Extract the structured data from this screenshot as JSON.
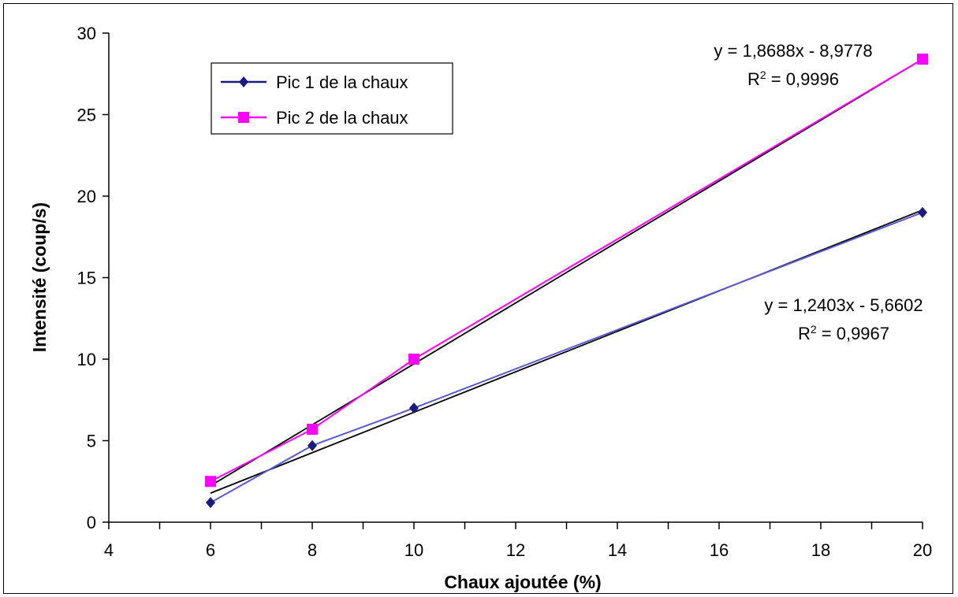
{
  "chart_data": {
    "type": "line",
    "xlabel": "Chaux ajoutée (%)",
    "ylabel": "Intensité (coup/s)",
    "xlim": [
      4,
      20
    ],
    "ylim": [
      0,
      30
    ],
    "x_ticks": [
      4,
      6,
      8,
      10,
      12,
      14,
      16,
      18,
      20
    ],
    "y_ticks": [
      0,
      5,
      10,
      15,
      20,
      25,
      30
    ],
    "grid": false,
    "legend_placement": "top-left",
    "series": [
      {
        "name": "Pic 1 de la chaux",
        "x": [
          6,
          8,
          10,
          20
        ],
        "y": [
          1.2,
          4.7,
          7.0,
          19.0
        ],
        "color": "#1a1a80",
        "line_color": "#5a5ad0",
        "marker": "diamond",
        "trendline": {
          "slope": 1.2403,
          "intercept": -5.6602,
          "color": "#000000"
        },
        "equation": "y = 1,2403x - 5,6602",
        "r2_label": "R",
        "r2_exp": "2",
        "r2_value": " = 0,9967"
      },
      {
        "name": "Pic 2 de la chaux",
        "x": [
          6,
          8,
          10,
          20
        ],
        "y": [
          2.5,
          5.7,
          10.0,
          28.4
        ],
        "color": "#ff00ff",
        "line_color": "#ff00ff",
        "marker": "square",
        "trendline": {
          "slope": 1.8688,
          "intercept": -8.9778,
          "color": "#000000"
        },
        "equation": "y = 1,8688x - 8,9778",
        "r2_label": "R",
        "r2_exp": "2",
        "r2_value": " = 0,9996"
      }
    ]
  }
}
